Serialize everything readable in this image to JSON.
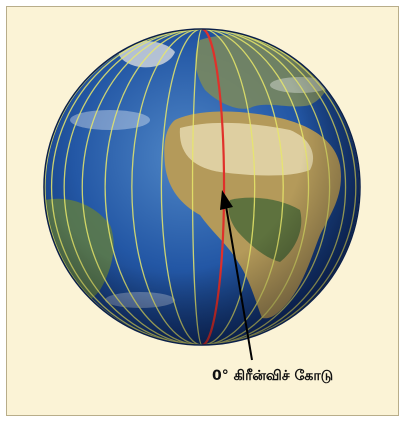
{
  "figure": {
    "caption": "0° கிரீன்விச் கோடு"
  },
  "colors": {
    "background": "#fbf3d6",
    "ocean": "#1f4f9a",
    "meridian_lines": "#e8e86a",
    "prime_meridian": "#e0302a",
    "land": "#a58a4a",
    "arrow": "#000000"
  },
  "icons": {
    "globe": "globe-icon",
    "arrow": "arrow-pointer-icon"
  }
}
